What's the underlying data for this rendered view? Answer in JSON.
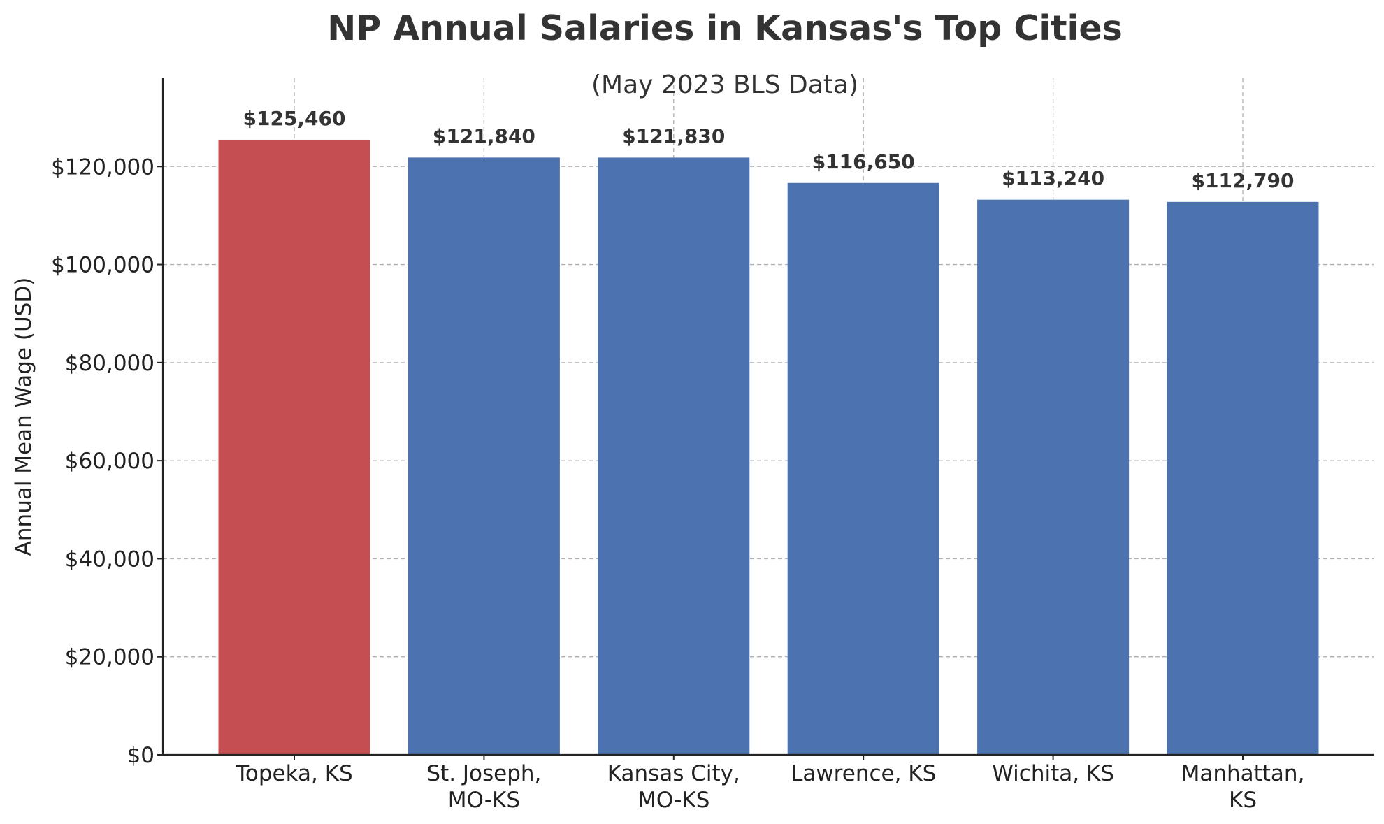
{
  "chart_data": {
    "type": "bar",
    "title": "NP Annual Salaries in Kansas's Top Cities",
    "subtitle": "(May 2023 BLS Data)",
    "ylabel": "Annual Mean Wage (USD)",
    "xlabel": "",
    "categories": [
      [
        "Topeka, KS"
      ],
      [
        "St. Joseph,",
        "MO-KS"
      ],
      [
        "Kansas City,",
        "MO-KS"
      ],
      [
        "Lawrence, KS"
      ],
      [
        "Wichita, KS"
      ],
      [
        "Manhattan,",
        "KS"
      ]
    ],
    "values": [
      125460,
      121840,
      121830,
      116650,
      113240,
      112790
    ],
    "value_labels": [
      "$125,460",
      "$121,840",
      "$121,830",
      "$116,650",
      "$113,240",
      "$112,790"
    ],
    "bar_colors": [
      "#c44e52",
      "#4c72b0",
      "#4c72b0",
      "#4c72b0",
      "#4c72b0",
      "#4c72b0"
    ],
    "ylim": [
      0,
      138000
    ],
    "yticks": [
      0,
      20000,
      40000,
      60000,
      80000,
      100000,
      120000
    ],
    "ytick_labels": [
      "$0",
      "$20,000",
      "$40,000",
      "$60,000",
      "$80,000",
      "$100,000",
      "$120,000"
    ],
    "grid": true,
    "legend": "none"
  }
}
